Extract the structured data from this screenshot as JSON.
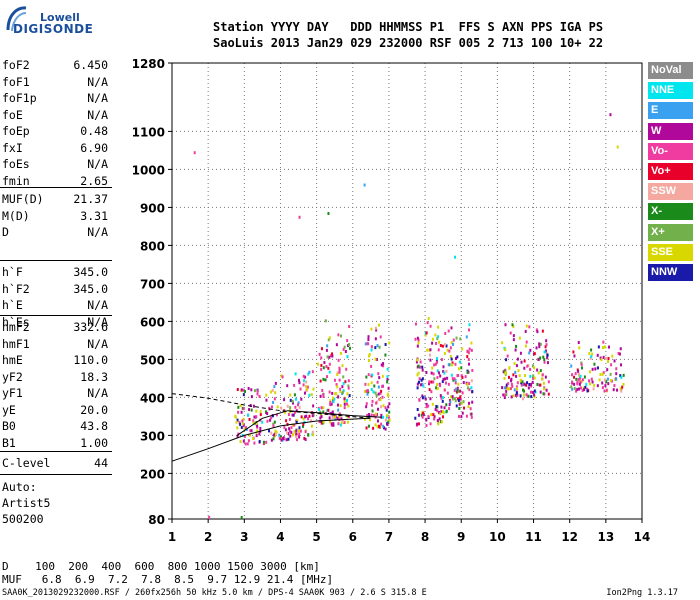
{
  "logo": {
    "line1": "Lowell",
    "line2": "DIGISONDE"
  },
  "header": {
    "line1": "Station YYYY DAY   DDD HHMMSS P1  FFS S AXN PPS IGA PS",
    "line2": "SaoLuis 2013 Jan29 029 232000 RSF 005 2 713 100 10+ 22"
  },
  "params_group1": [
    {
      "name": "foF2",
      "value": "6.450"
    },
    {
      "name": "foF1",
      "value": "N/A"
    },
    {
      "name": "foF1p",
      "value": "N/A"
    },
    {
      "name": "foE",
      "value": "N/A"
    },
    {
      "name": "foEp",
      "value": "0.48"
    },
    {
      "name": "fxI",
      "value": "6.90"
    },
    {
      "name": "foEs",
      "value": "N/A"
    },
    {
      "name": "fmin",
      "value": "2.65"
    }
  ],
  "params_group2": [
    {
      "name": "MUF(D)",
      "value": "21.37"
    },
    {
      "name": "M(D)",
      "value": "3.31"
    },
    {
      "name": "D",
      "value": "N/A"
    }
  ],
  "params_group3": [
    {
      "name": "h`F",
      "value": "345.0"
    },
    {
      "name": "h`F2",
      "value": "345.0"
    },
    {
      "name": "h`E",
      "value": "N/A"
    },
    {
      "name": "h`Es",
      "value": "N/A"
    }
  ],
  "params_group4": [
    {
      "name": "hmF2",
      "value": "332.6"
    },
    {
      "name": "hmF1",
      "value": "N/A"
    },
    {
      "name": "hmE",
      "value": "110.0"
    },
    {
      "name": "yF2",
      "value": "18.3"
    },
    {
      "name": "yF1",
      "value": "N/A"
    },
    {
      "name": "yE",
      "value": "20.0"
    },
    {
      "name": "B0",
      "value": "43.8"
    },
    {
      "name": "B1",
      "value": "1.00"
    }
  ],
  "params_group5": [
    {
      "name": "C-level",
      "value": "44"
    }
  ],
  "auto": {
    "line1": "Auto:",
    "line2": "Artist5",
    "line3": "500200"
  },
  "legend": [
    {
      "label": "NoVal",
      "color": "#8c8c8c"
    },
    {
      "label": "NNE",
      "color": "#00e5ee"
    },
    {
      "label": "E",
      "color": "#3aa0f0"
    },
    {
      "label": "W",
      "color": "#b0089a"
    },
    {
      "label": "Vo-",
      "color": "#f03ca0"
    },
    {
      "label": "Vo+",
      "color": "#e8002a"
    },
    {
      "label": "SSW",
      "color": "#f4a8a0"
    },
    {
      "label": "X-",
      "color": "#1a8a1a"
    },
    {
      "label": "X+",
      "color": "#72b04c"
    },
    {
      "label": "SSE",
      "color": "#d8d800"
    },
    {
      "label": "NNW",
      "color": "#1a1aaa"
    }
  ],
  "bottom": {
    "d_line": "D    100  200  400  600  800 1000 1500 3000 [km]",
    "muf_line": "MUF   6.8  6.9  7.2  7.8  8.5  9.7 12.9 21.4 [MHz]",
    "footer": "SAA0K_2013029232000.RSF / 260fx256h 50 kHz 5.0 km / DPS-4 SAA0K 903 / 2.6 S 315.8 E",
    "version": "Ion2Png 1.3.17"
  },
  "chart_data": {
    "type": "scatter",
    "title": "",
    "xlabel": "",
    "ylabel": "",
    "xlim": [
      1,
      14
    ],
    "ylim": [
      80,
      1280
    ],
    "xticks": [
      "1",
      "2",
      "3",
      "4",
      "5",
      "6",
      "7",
      "8",
      "9",
      "10",
      "11",
      "12",
      "13",
      "14"
    ],
    "yticks": [
      80,
      200,
      300,
      400,
      500,
      600,
      700,
      800,
      900,
      1000,
      1100,
      1280
    ],
    "ytick_labels": [
      "80",
      "200",
      "300",
      "400",
      "500",
      "600",
      "700",
      "800",
      "900",
      "1000",
      "1100",
      "1280"
    ],
    "grid": true,
    "echo_clusters": [
      {
        "x_range": [
          2.7,
          3.6
        ],
        "y_range": [
          280,
          460
        ],
        "note": "dense"
      },
      {
        "x_range": [
          3.6,
          4.4
        ],
        "y_range": [
          290,
          480
        ]
      },
      {
        "x_range": [
          4.4,
          4.9
        ],
        "y_range": [
          290,
          520
        ]
      },
      {
        "x_range": [
          5.0,
          5.9
        ],
        "y_range": [
          330,
          620
        ]
      },
      {
        "x_range": [
          6.3,
          7.0
        ],
        "y_range": [
          320,
          620
        ]
      },
      {
        "x_range": [
          7.7,
          8.5
        ],
        "y_range": [
          330,
          640
        ]
      },
      {
        "x_range": [
          8.5,
          9.3
        ],
        "y_range": [
          350,
          620
        ]
      },
      {
        "x_range": [
          10.1,
          11.4
        ],
        "y_range": [
          400,
          620
        ]
      },
      {
        "x_range": [
          12.0,
          13.5
        ],
        "y_range": [
          420,
          560
        ]
      }
    ],
    "profile_lines": [
      {
        "style": "solid",
        "points": [
          [
            1.0,
            232
          ],
          [
            2.0,
            265
          ],
          [
            3.0,
            300
          ],
          [
            4.0,
            325
          ],
          [
            5.0,
            338
          ],
          [
            6.45,
            345
          ]
        ]
      },
      {
        "style": "solid",
        "points": [
          [
            2.8,
            300
          ],
          [
            3.5,
            345
          ],
          [
            4.2,
            365
          ],
          [
            5.0,
            360
          ],
          [
            6.0,
            352
          ],
          [
            6.8,
            348
          ]
        ]
      },
      {
        "style": "dashed",
        "points": [
          [
            1.0,
            410
          ],
          [
            2.0,
            398
          ],
          [
            3.0,
            380
          ],
          [
            4.0,
            365
          ],
          [
            5.0,
            358
          ],
          [
            6.5,
            345
          ]
        ]
      }
    ],
    "outliers": [
      {
        "x": 1.6,
        "y": 1040
      },
      {
        "x": 13.1,
        "y": 1140
      },
      {
        "x": 13.3,
        "y": 1055
      },
      {
        "x": 6.3,
        "y": 955
      },
      {
        "x": 4.5,
        "y": 870
      },
      {
        "x": 5.3,
        "y": 880
      },
      {
        "x": 8.8,
        "y": 765
      },
      {
        "x": 2.0,
        "y": 80
      },
      {
        "x": 2.9,
        "y": 80
      }
    ]
  }
}
